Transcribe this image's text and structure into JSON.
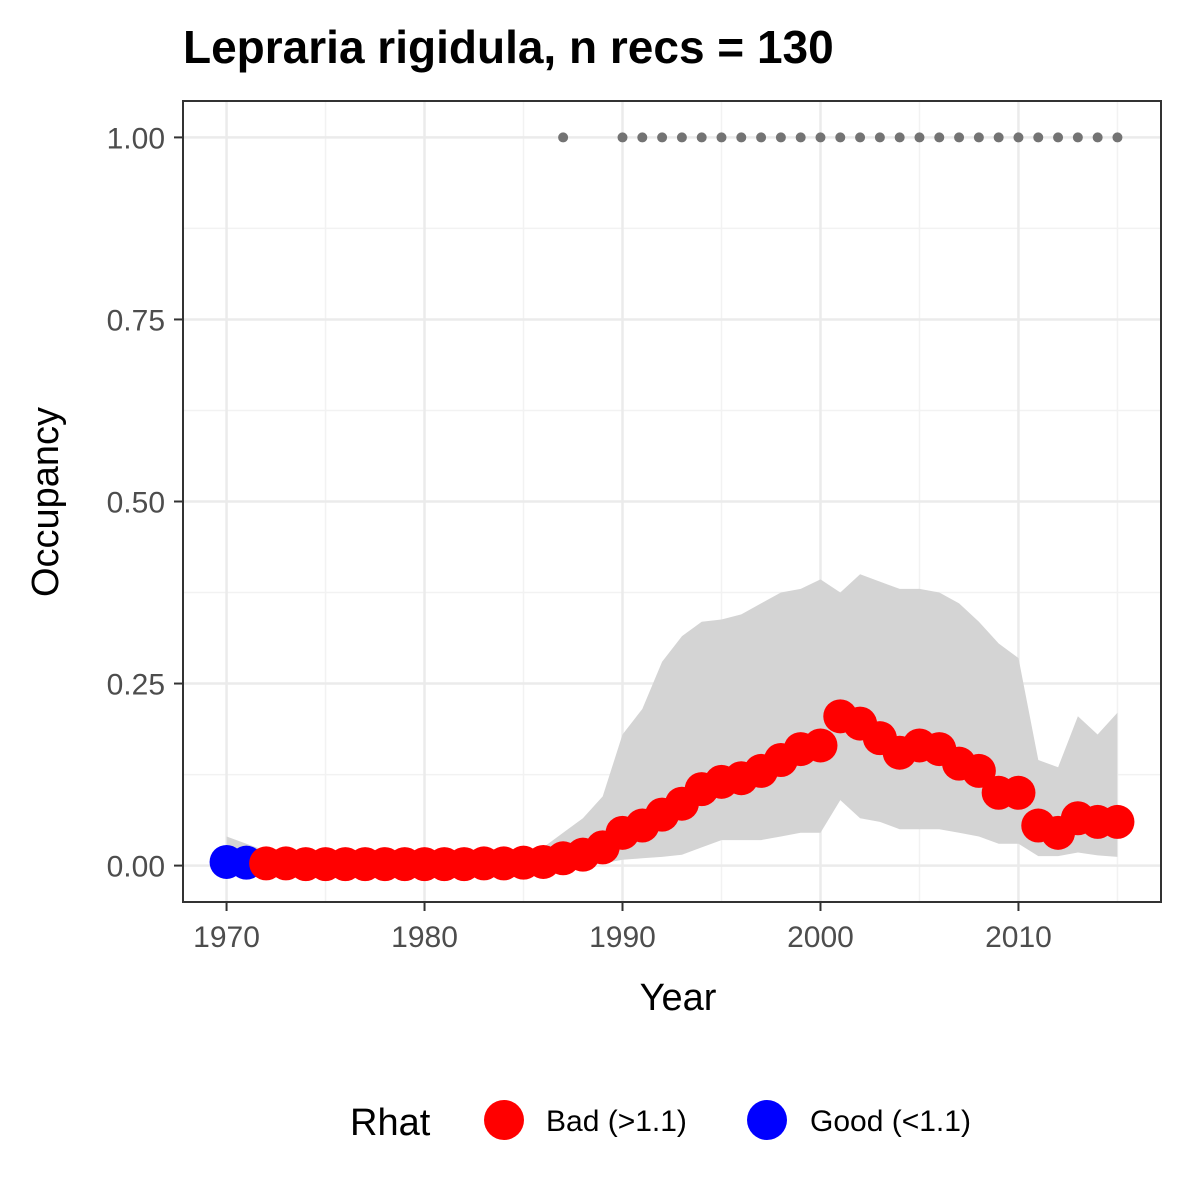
{
  "chart_data": {
    "type": "line",
    "title": "Lepraria rigidula, n recs = 130",
    "xlabel": "Year",
    "ylabel": "Occupancy",
    "xlim": [
      1967.8,
      2017.2
    ],
    "ylim": [
      -0.05,
      1.05
    ],
    "x_ticks": [
      1970,
      1980,
      1990,
      2000,
      2010
    ],
    "x_tick_labels": [
      "1970",
      "1980",
      "1990",
      "2000",
      "2010"
    ],
    "y_ticks": [
      0,
      0.25,
      0.5,
      0.75,
      1.0
    ],
    "y_tick_labels": [
      "0.00",
      "0.25",
      "0.50",
      "0.75",
      "1.00"
    ],
    "grid": true,
    "legend": {
      "title": "Rhat",
      "position": "bottom",
      "entries": [
        {
          "label": "Bad (>1.1)",
          "color": "#ff0000"
        },
        {
          "label": "Good (<1.1)",
          "color": "#0000ff"
        }
      ]
    },
    "colors": {
      "bad": "#ff0000",
      "good": "#0000ff",
      "ribbon": "#d4d4d4",
      "records": "#737373"
    },
    "series": [
      {
        "x": [
          1970,
          1971,
          1972,
          1973,
          1974,
          1975,
          1976,
          1977,
          1978,
          1979,
          1980,
          1981,
          1982,
          1983,
          1984,
          1985,
          1986,
          1987,
          1988,
          1989,
          1990,
          1991,
          1992,
          1993,
          1994,
          1995,
          1996,
          1997,
          1998,
          1999,
          2000,
          2001,
          2002,
          2003,
          2004,
          2005,
          2006,
          2007,
          2008,
          2009,
          2010,
          2011,
          2012,
          2013,
          2014,
          2015
        ],
        "values": [
          0.005,
          0.004,
          0.003,
          0.003,
          0.002,
          0.002,
          0.002,
          0.002,
          0.002,
          0.002,
          0.002,
          0.002,
          0.002,
          0.003,
          0.003,
          0.004,
          0.005,
          0.01,
          0.015,
          0.025,
          0.045,
          0.055,
          0.07,
          0.085,
          0.105,
          0.115,
          0.12,
          0.13,
          0.145,
          0.16,
          0.165,
          0.205,
          0.195,
          0.175,
          0.155,
          0.165,
          0.16,
          0.14,
          0.13,
          0.1,
          0.1,
          0.055,
          0.045,
          0.065,
          0.06,
          0.06
        ],
        "rhat": [
          "Good",
          "Good",
          "Bad",
          "Bad",
          "Bad",
          "Bad",
          "Bad",
          "Bad",
          "Bad",
          "Bad",
          "Bad",
          "Bad",
          "Bad",
          "Bad",
          "Bad",
          "Bad",
          "Bad",
          "Bad",
          "Bad",
          "Bad",
          "Bad",
          "Bad",
          "Bad",
          "Bad",
          "Bad",
          "Bad",
          "Bad",
          "Bad",
          "Bad",
          "Bad",
          "Bad",
          "Bad",
          "Bad",
          "Bad",
          "Bad",
          "Bad",
          "Bad",
          "Bad",
          "Bad",
          "Bad",
          "Bad",
          "Bad",
          "Bad",
          "Bad",
          "Bad",
          "Bad"
        ],
        "lower": [
          0,
          0,
          0,
          0,
          0,
          0,
          0,
          0,
          0,
          0,
          0,
          0,
          0,
          0,
          0,
          0,
          0,
          0,
          0,
          0.003,
          0.008,
          0.01,
          0.012,
          0.015,
          0.025,
          0.035,
          0.035,
          0.035,
          0.04,
          0.045,
          0.045,
          0.09,
          0.065,
          0.06,
          0.05,
          0.05,
          0.05,
          0.045,
          0.04,
          0.03,
          0.03,
          0.013,
          0.013,
          0.018,
          0.014,
          0.012
        ],
        "upper": [
          0.04,
          0.03,
          0.02,
          0.015,
          0.012,
          0.01,
          0.01,
          0.01,
          0.01,
          0.01,
          0.01,
          0.01,
          0.01,
          0.01,
          0.012,
          0.015,
          0.025,
          0.045,
          0.065,
          0.095,
          0.18,
          0.215,
          0.28,
          0.315,
          0.335,
          0.338,
          0.345,
          0.36,
          0.375,
          0.38,
          0.393,
          0.375,
          0.4,
          0.39,
          0.38,
          0.38,
          0.375,
          0.36,
          0.335,
          0.305,
          0.285,
          0.145,
          0.135,
          0.205,
          0.18,
          0.21
        ]
      }
    ],
    "record_years": [
      1987,
      1990,
      1991,
      1992,
      1993,
      1994,
      1995,
      1996,
      1997,
      1998,
      1999,
      2000,
      2001,
      2002,
      2003,
      2004,
      2005,
      2006,
      2007,
      2008,
      2009,
      2010,
      2011,
      2012,
      2013,
      2014,
      2015
    ],
    "record_value": 1.0
  }
}
